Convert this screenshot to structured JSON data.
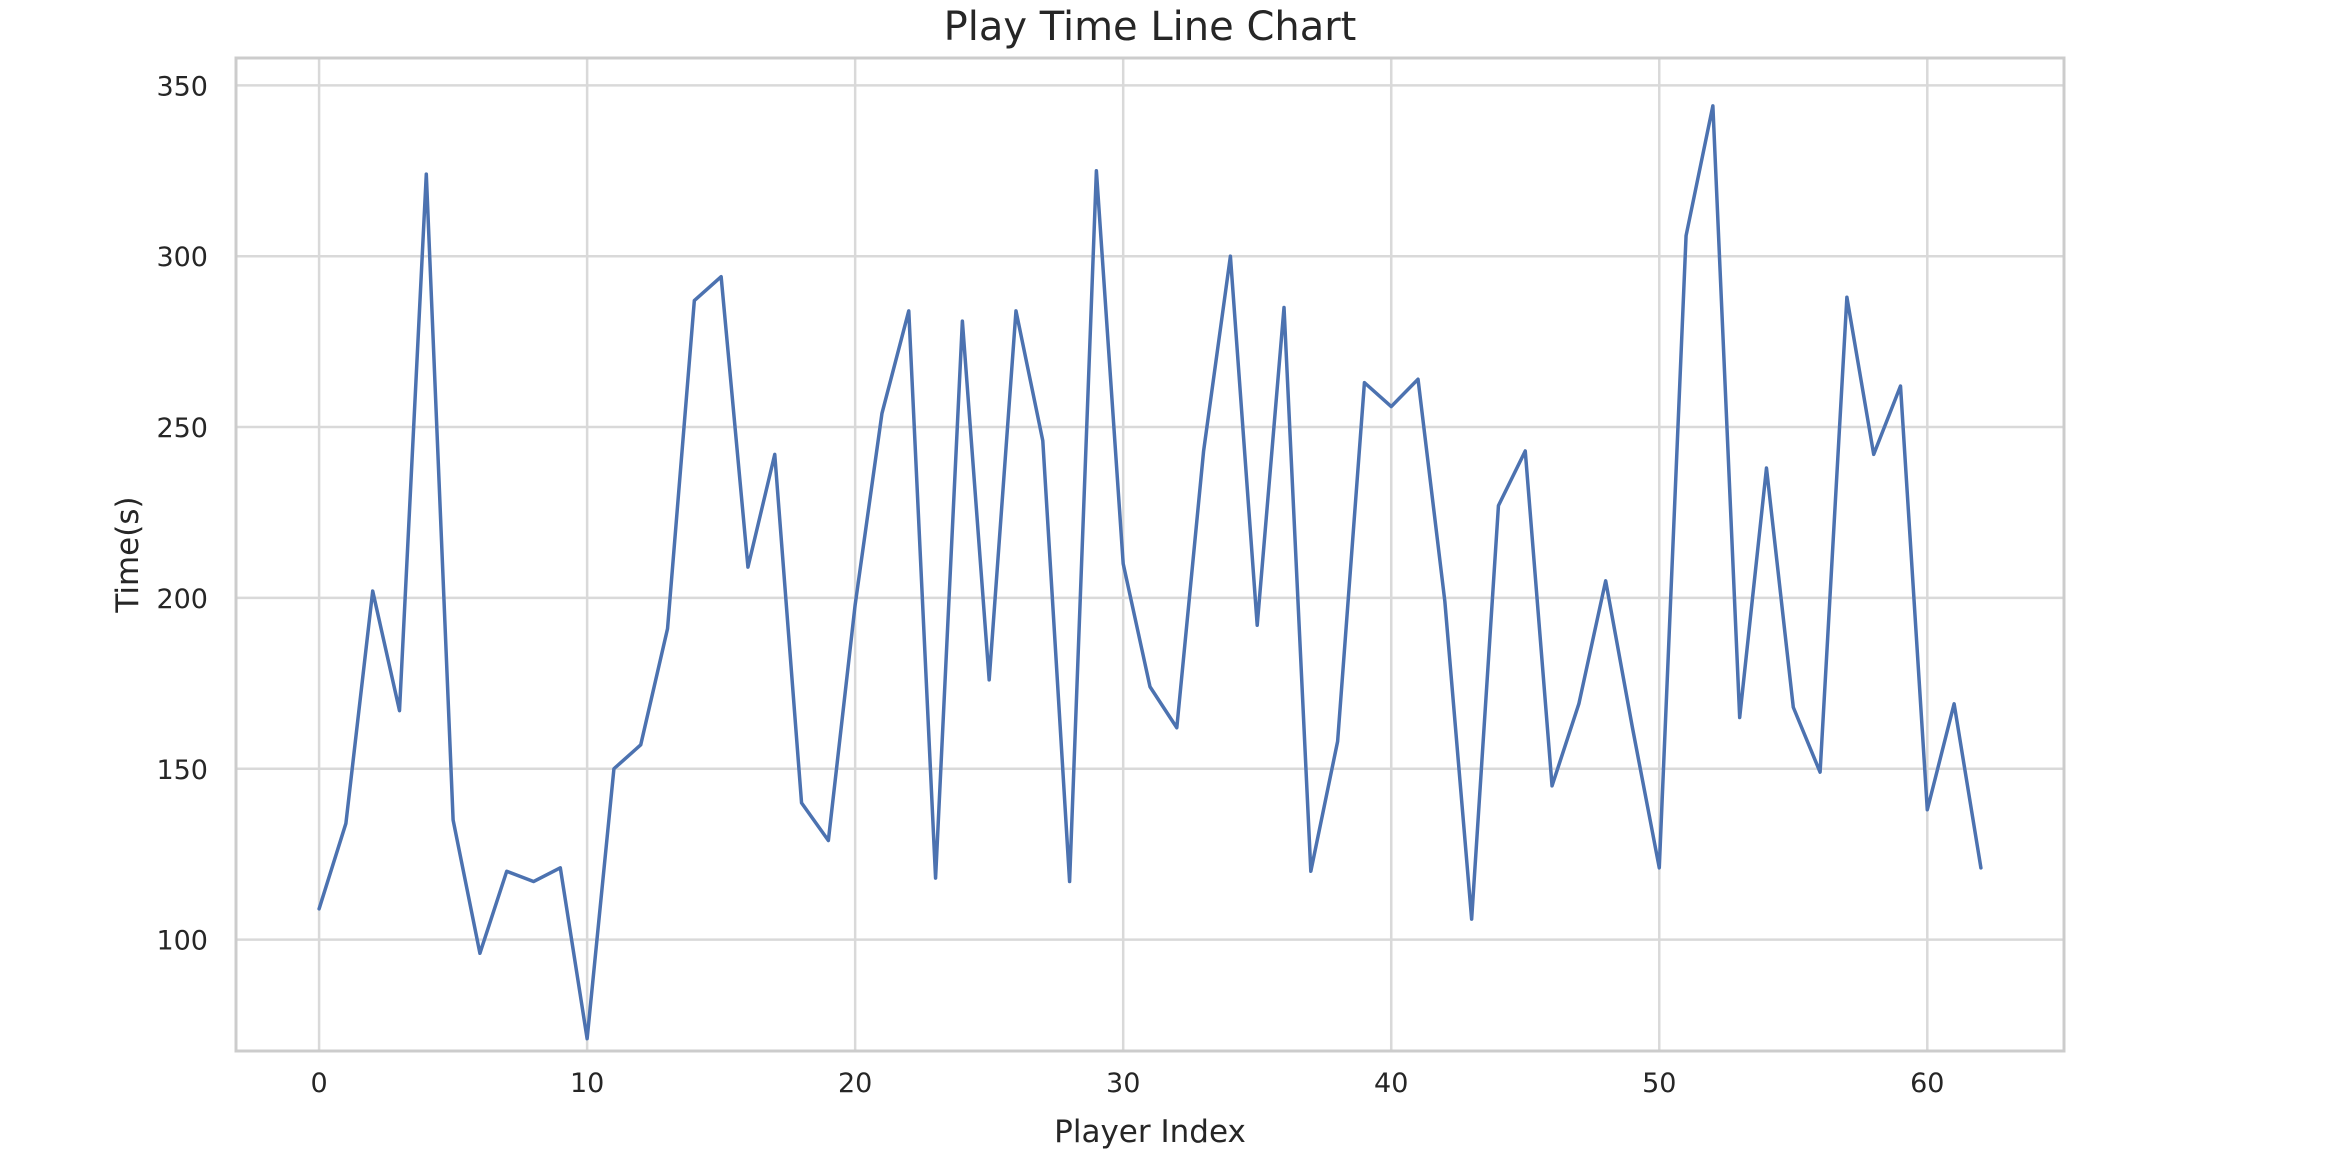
{
  "chart_data": {
    "type": "line",
    "title": "Play Time Line Chart",
    "xlabel": "Player Index",
    "ylabel": "Time(s)",
    "xlim": [
      -3.1,
      65.1
    ],
    "ylim": [
      67.4,
      358.0
    ],
    "xticks": [
      0,
      10,
      20,
      30,
      40,
      50,
      60
    ],
    "yticks": [
      100,
      150,
      200,
      250,
      300,
      350
    ],
    "grid": true,
    "legend": "none",
    "series": [
      {
        "color": "#4c72b0",
        "x": [
          0,
          1,
          2,
          3,
          4,
          5,
          6,
          7,
          8,
          9,
          10,
          11,
          12,
          13,
          14,
          15,
          16,
          17,
          18,
          19,
          20,
          21,
          22,
          23,
          24,
          25,
          26,
          27,
          28,
          29,
          30,
          31,
          32,
          33,
          34,
          35,
          36,
          37,
          38,
          39,
          40,
          41,
          42,
          43,
          44,
          45,
          46,
          47,
          48,
          49,
          50,
          51,
          52,
          53,
          54,
          55,
          56,
          57,
          58,
          59,
          60,
          61,
          62
        ],
        "values": [
          109,
          134,
          202,
          167,
          324,
          135,
          96,
          120,
          117,
          121,
          71,
          150,
          157,
          191,
          287,
          294,
          209,
          242,
          140,
          129,
          198,
          254,
          284,
          118,
          281,
          176,
          284,
          246,
          117,
          325,
          210,
          174,
          162,
          243,
          300,
          192,
          285,
          120,
          158,
          263,
          256,
          264,
          199,
          106,
          227,
          243,
          145,
          169,
          205,
          162,
          121,
          306,
          344,
          165,
          238,
          168,
          149,
          288,
          242,
          262,
          138,
          169,
          121
        ]
      }
    ]
  },
  "colors": {
    "line": "#4c72b0",
    "grid": "#d9d9d9",
    "frame": "#cccccc",
    "text": "#262626",
    "background": "#ffffff"
  }
}
